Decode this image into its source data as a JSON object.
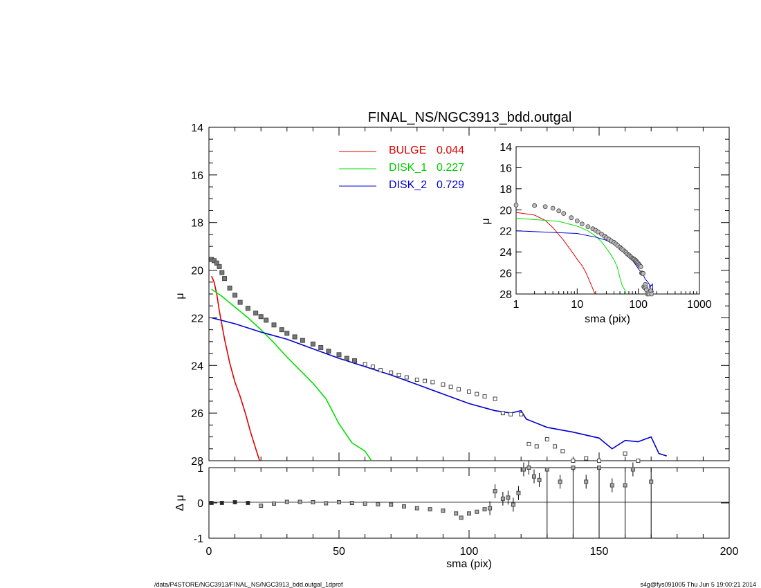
{
  "title": "FINAL_NS/NGC3913_bdd.outgal",
  "footer_left": "/data/P4STORE/NGC3913/FINAL_NS/NGC3913_bdd.outgal_1dprof",
  "footer_right": "s4g@fys091005  Thu Jun  5 19:00:21 2014",
  "chart_data": [
    {
      "panel": "main",
      "type": "line",
      "xlabel": "sma (pix)",
      "ylabel": "μ",
      "xlim": [
        0,
        200
      ],
      "ylim": [
        28,
        14
      ],
      "ytick_labels": [
        "14",
        "16",
        "18",
        "20",
        "22",
        "24",
        "26",
        "28"
      ],
      "legend": [
        {
          "name": "BULGE",
          "value": "0.044",
          "color": "#e00000"
        },
        {
          "name": "DISK_1",
          "value": "0.227",
          "color": "#00e000"
        },
        {
          "name": "DISK_2",
          "value": "0.729",
          "color": "#0000d0"
        }
      ],
      "series": [
        {
          "name": "BULGE",
          "color": "#e00000",
          "x": [
            1,
            2,
            3,
            4,
            6,
            8,
            10,
            12,
            14,
            16,
            18,
            19.5
          ],
          "y": [
            20.25,
            20.5,
            21.0,
            21.7,
            22.9,
            23.9,
            24.7,
            25.3,
            26.0,
            26.8,
            27.5,
            28.0
          ]
        },
        {
          "name": "DISK_1",
          "color": "#00e000",
          "x": [
            1,
            5,
            10,
            15,
            20,
            25,
            30,
            35,
            40,
            45,
            50,
            55,
            60,
            62.5
          ],
          "y": [
            20.8,
            21.1,
            21.55,
            22.0,
            22.5,
            23.05,
            23.65,
            24.2,
            24.75,
            25.4,
            26.45,
            27.25,
            27.6,
            28.0
          ]
        },
        {
          "name": "DISK_2",
          "color": "#0000d0",
          "x": [
            1,
            10,
            20,
            30,
            40,
            50,
            60,
            70,
            80,
            90,
            100,
            110,
            116,
            120,
            122,
            130,
            140,
            150,
            155,
            160,
            165,
            170,
            173,
            176
          ],
          "y": [
            22.0,
            22.25,
            22.6,
            22.9,
            23.3,
            23.7,
            24.05,
            24.4,
            24.8,
            25.2,
            25.6,
            25.9,
            26.0,
            25.9,
            26.25,
            26.6,
            26.8,
            27.05,
            27.5,
            27.15,
            27.2,
            27.0,
            27.7,
            27.8
          ]
        },
        {
          "name": "data",
          "color": "#555555",
          "x": [
            1,
            2,
            3,
            4,
            5,
            6,
            8,
            10,
            12,
            15,
            18,
            20,
            22,
            25,
            28,
            30,
            33,
            36,
            40,
            43,
            46,
            50,
            53,
            56,
            60,
            63,
            66,
            70,
            73,
            76,
            80,
            83,
            86,
            90,
            93,
            96,
            100,
            103,
            106,
            110,
            113,
            116,
            120,
            123,
            126,
            130,
            133,
            136,
            140,
            145,
            150,
            160,
            165
          ],
          "y": [
            19.55,
            19.6,
            19.7,
            19.85,
            20.1,
            20.35,
            20.75,
            21.05,
            21.35,
            21.6,
            21.8,
            21.95,
            22.1,
            22.3,
            22.5,
            22.65,
            22.8,
            22.95,
            23.1,
            23.25,
            23.4,
            23.55,
            23.7,
            23.8,
            23.95,
            24.05,
            24.2,
            24.3,
            24.4,
            24.5,
            24.6,
            24.65,
            24.7,
            24.8,
            24.9,
            25.0,
            25.1,
            25.2,
            25.3,
            25.4,
            26.0,
            26.05,
            26.05,
            27.3,
            27.4,
            27.1,
            27.4,
            27.6,
            28.0,
            27.9,
            28.0,
            27.7,
            28.0
          ]
        }
      ]
    },
    {
      "panel": "residual",
      "type": "scatter",
      "xlabel": "sma (pix)",
      "ylabel": "Δ μ",
      "xlim": [
        0,
        200
      ],
      "ylim": [
        -1,
        1
      ],
      "xtick_labels": [
        "0",
        "50",
        "100",
        "150",
        "200"
      ],
      "ytick_labels": [
        "1",
        "0",
        "-1"
      ],
      "x": [
        1,
        5,
        10,
        15,
        20,
        25,
        30,
        35,
        40,
        45,
        50,
        55,
        60,
        65,
        70,
        75,
        80,
        85,
        90,
        95,
        97,
        100,
        103,
        106,
        108,
        110,
        113,
        115,
        117,
        119,
        121,
        123,
        125,
        127,
        130,
        135,
        140,
        145,
        150,
        155,
        160,
        163,
        170
      ],
      "y": [
        0.0,
        0.0,
        0.02,
        0.0,
        -0.08,
        -0.02,
        0.03,
        0.03,
        0.02,
        -0.01,
        0.02,
        0.0,
        -0.02,
        -0.04,
        -0.05,
        -0.1,
        -0.15,
        -0.18,
        -0.22,
        -0.3,
        -0.42,
        -0.3,
        -0.25,
        -0.18,
        -0.15,
        0.33,
        0.12,
        0.15,
        -0.05,
        0.28,
        0.95,
        1.0,
        0.75,
        0.65,
        0.95,
        0.6,
        1.0,
        0.6,
        1.0,
        0.5,
        0.5,
        0.95,
        0.6
      ]
    },
    {
      "panel": "inset",
      "type": "line",
      "xscale": "log",
      "xlabel": "sma (pix)",
      "ylabel": "μ",
      "xlim": [
        1,
        1000
      ],
      "ylim": [
        28,
        14
      ],
      "xtick_labels": [
        "1",
        "10",
        "100",
        "1000"
      ],
      "ytick_labels": [
        "14",
        "16",
        "18",
        "20",
        "22",
        "24",
        "26",
        "28"
      ]
    }
  ]
}
